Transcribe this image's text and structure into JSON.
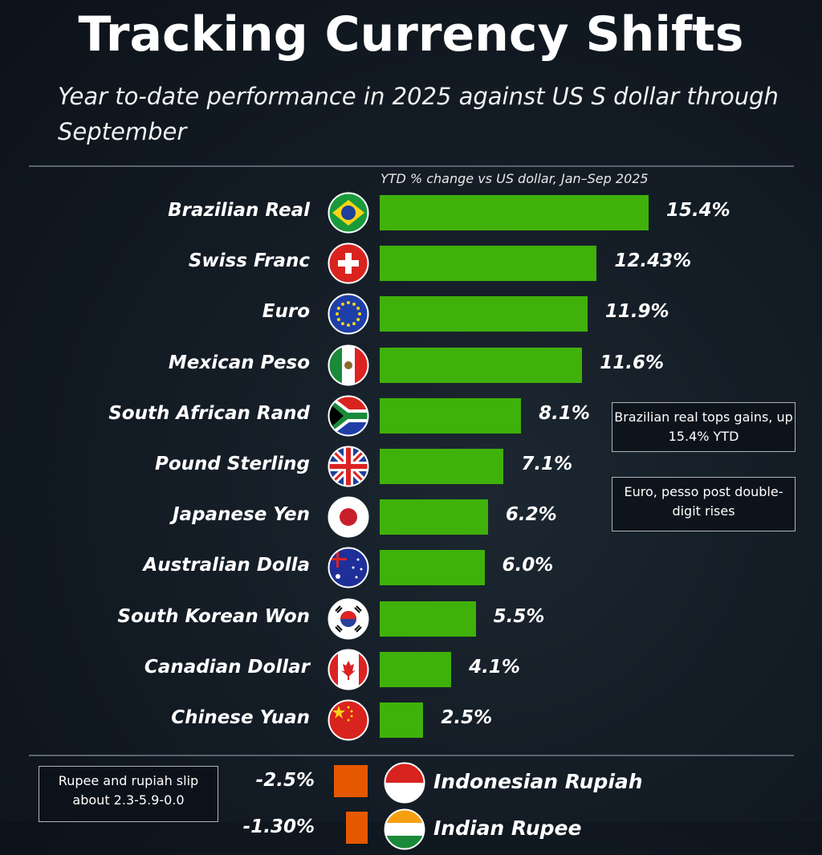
{
  "title": "Tracking Currency Shifts",
  "subtitle": "Year to-date performance in 2025 against US S dollar through September",
  "chart_data": {
    "type": "bar",
    "orientation": "horizontal",
    "title": "Tracking Currency Shifts",
    "subtitle": "Year to-date performance in 2025 against US S dollar through September",
    "axis_note": "YTD % change vs US dollar, Jan–Sep 2025",
    "categories": [
      "Brazilian Real",
      "Swiss Franc",
      "Euro",
      "Mexican Peso",
      "South African Rand",
      "Pound Sterling",
      "Japanese Yen",
      "Australian Dolla",
      "South Korean Won",
      "Canadian Dollar",
      "Chinese Yuan"
    ],
    "values": [
      15.4,
      12.43,
      11.9,
      11.6,
      8.1,
      7.1,
      6.2,
      6.0,
      5.5,
      4.1,
      2.5
    ],
    "value_labels": [
      "15.4%",
      "12.43%",
      "11.9%",
      "11.6%",
      "8.1%",
      "7.1%",
      "6.2%",
      "6.0%",
      "5.5%",
      "4.1%",
      "2.5%"
    ],
    "flags": [
      "brazil",
      "switzerland",
      "eu",
      "mexico",
      "south-africa",
      "uk",
      "japan",
      "australia",
      "south-korea",
      "canada",
      "china"
    ],
    "positive_color": "#3fb10a",
    "negative_series": {
      "categories": [
        "Indonesian Rupiah",
        "Indian Rupee"
      ],
      "values": [
        -2.5,
        -1.3
      ],
      "value_labels": [
        "-2.5%",
        "-1.30%"
      ],
      "flags": [
        "indonesia",
        "india"
      ],
      "color": "#e65800"
    },
    "annotations": [
      "Brazilian real tops gains, up 15.4% YTD",
      "Euro, pesso post double-digit rises",
      "Rupee and rupiah slip about 2.3-5.9-0.0"
    ]
  }
}
